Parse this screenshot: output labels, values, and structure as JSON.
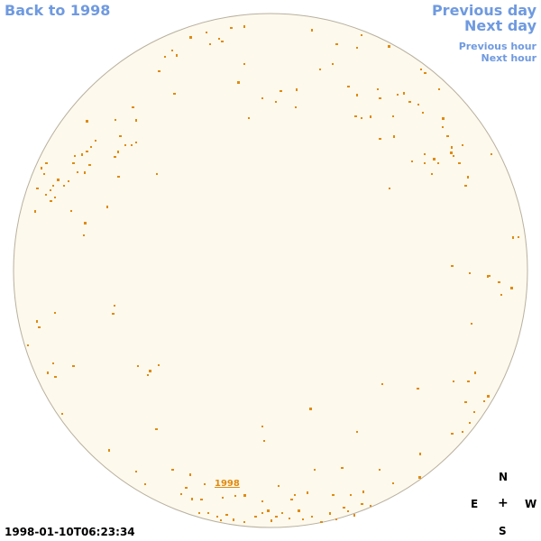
{
  "nav": {
    "back": "Back to 1998",
    "previous_day": "Previous day",
    "next_day": "Next day",
    "previous_hour": "Previous hour",
    "next_hour": "Next hour"
  },
  "disk": {
    "year_label": "1998",
    "fill_color": "#fdf9ec",
    "edge_color": "#b8b0a0",
    "feature_color": "#e08a10"
  },
  "compass": {
    "north": "N",
    "east": "E",
    "center": "+",
    "west": "W",
    "south": "S"
  },
  "timestamp": "1998-01-10T06:23:34"
}
